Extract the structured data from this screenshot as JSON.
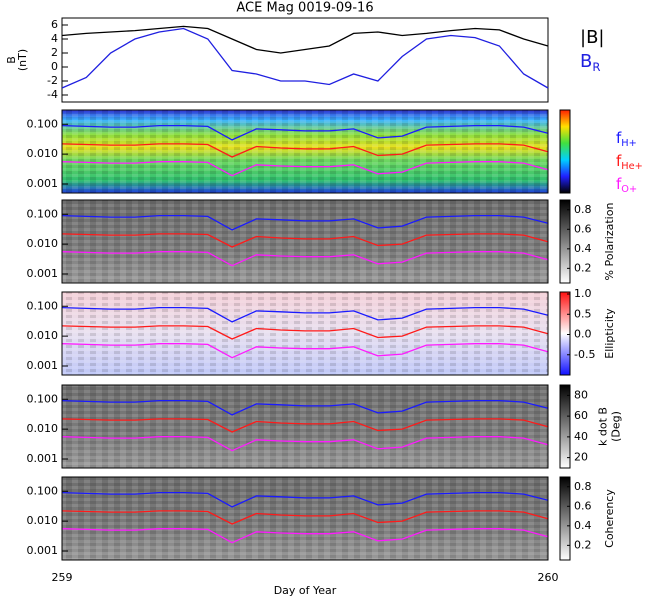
{
  "chart_data": [
    {
      "type": "line",
      "title": "ACE Mag 0019-09-16",
      "y_label": [
        "B",
        "(nT)"
      ],
      "x": [
        259,
        259.05,
        259.1,
        259.15,
        259.2,
        259.25,
        259.3,
        259.35,
        259.4,
        259.45,
        259.5,
        259.55,
        259.6,
        259.65,
        259.7,
        259.75,
        259.8,
        259.85,
        259.9,
        259.95,
        260
      ],
      "series": [
        {
          "name": "|B|",
          "color": "#000000",
          "values": [
            4.5,
            4.8,
            5,
            5.2,
            5.5,
            5.8,
            5.5,
            4,
            2.5,
            2,
            2.5,
            3,
            4.8,
            5,
            4.5,
            4.8,
            5.2,
            5.5,
            5.3,
            4,
            3
          ]
        },
        {
          "name": "B",
          "name_sub": "R",
          "color": "#1f1fe0",
          "values": [
            -3,
            -1.5,
            2,
            4,
            5,
            5.5,
            4,
            -0.5,
            -1,
            -2,
            -2,
            -2.5,
            -1,
            -2,
            1.5,
            4,
            4.5,
            4.2,
            3,
            -1,
            -3
          ]
        }
      ],
      "xlim": [
        259,
        260
      ],
      "ylim": [
        -5,
        7
      ],
      "yticks": [
        -4,
        -2,
        0,
        2,
        4,
        6
      ]
    },
    {
      "type": "spectrogram",
      "x_label": "Day of Year",
      "x": [
        259,
        259.05,
        259.1,
        259.15,
        259.2,
        259.25,
        259.3,
        259.35,
        259.4,
        259.45,
        259.5,
        259.55,
        259.6,
        259.65,
        259.7,
        259.75,
        259.8,
        259.85,
        259.9,
        259.95,
        260
      ],
      "xlim": [
        259,
        260
      ],
      "xticks": [
        259,
        260
      ],
      "ylim": [
        0.0005,
        0.3
      ],
      "log_y": true,
      "yticks": [
        {
          "value": 0.1,
          "label": "0.100"
        },
        {
          "value": 0.01,
          "label": "0.010"
        },
        {
          "value": 0.001,
          "label": "0.001"
        }
      ],
      "series": [
        {
          "name": "f",
          "name_sub": "H+",
          "color": "#1a1aff",
          "values": [
            0.09,
            0.085,
            0.08,
            0.08,
            0.09,
            0.09,
            0.085,
            0.03,
            0.07,
            0.065,
            0.06,
            0.06,
            0.07,
            0.035,
            0.04,
            0.08,
            0.085,
            0.09,
            0.09,
            0.08,
            0.05
          ]
        },
        {
          "name": "f",
          "name_sub": "He+",
          "color": "#ff1a1a",
          "values": [
            0.022,
            0.021,
            0.02,
            0.02,
            0.022,
            0.022,
            0.021,
            0.008,
            0.018,
            0.016,
            0.015,
            0.015,
            0.018,
            0.009,
            0.01,
            0.02,
            0.021,
            0.022,
            0.022,
            0.02,
            0.012
          ]
        },
        {
          "name": "f",
          "name_sub": "O+",
          "color": "#ff1aff",
          "values": [
            0.0056,
            0.0053,
            0.005,
            0.005,
            0.0056,
            0.0056,
            0.0053,
            0.0019,
            0.0044,
            0.004,
            0.0038,
            0.0038,
            0.0044,
            0.0022,
            0.0025,
            0.005,
            0.0053,
            0.0056,
            0.0056,
            0.005,
            0.003
          ]
        }
      ],
      "panels": [
        {
          "colormap": "rainbow"
        },
        {
          "colormap": "gray",
          "cbar_label": [
            "% Polarization"
          ],
          "clim": [
            0.05,
            0.9
          ],
          "cticks": [
            0.2,
            0.4,
            0.6,
            0.8
          ]
        },
        {
          "colormap": "bwr",
          "cbar_label": [
            "Ellipticity"
          ],
          "clim": [
            -1,
            1.05
          ],
          "cticks": [
            -0.5,
            {
              "value": 0,
              "label": "0.0"
            },
            0.5,
            {
              "value": 1,
              "label": "1.0"
            }
          ]
        },
        {
          "colormap": "gray",
          "cbar_label": [
            "k dot B",
            "(Deg)"
          ],
          "clim": [
            10,
            90
          ],
          "cticks": [
            20,
            40,
            60,
            80
          ]
        },
        {
          "colormap": "gray",
          "cbar_label": [
            "Coherency"
          ],
          "clim": [
            0.05,
            0.9
          ],
          "cticks": [
            0.2,
            0.4,
            0.6,
            0.8
          ]
        }
      ]
    }
  ]
}
